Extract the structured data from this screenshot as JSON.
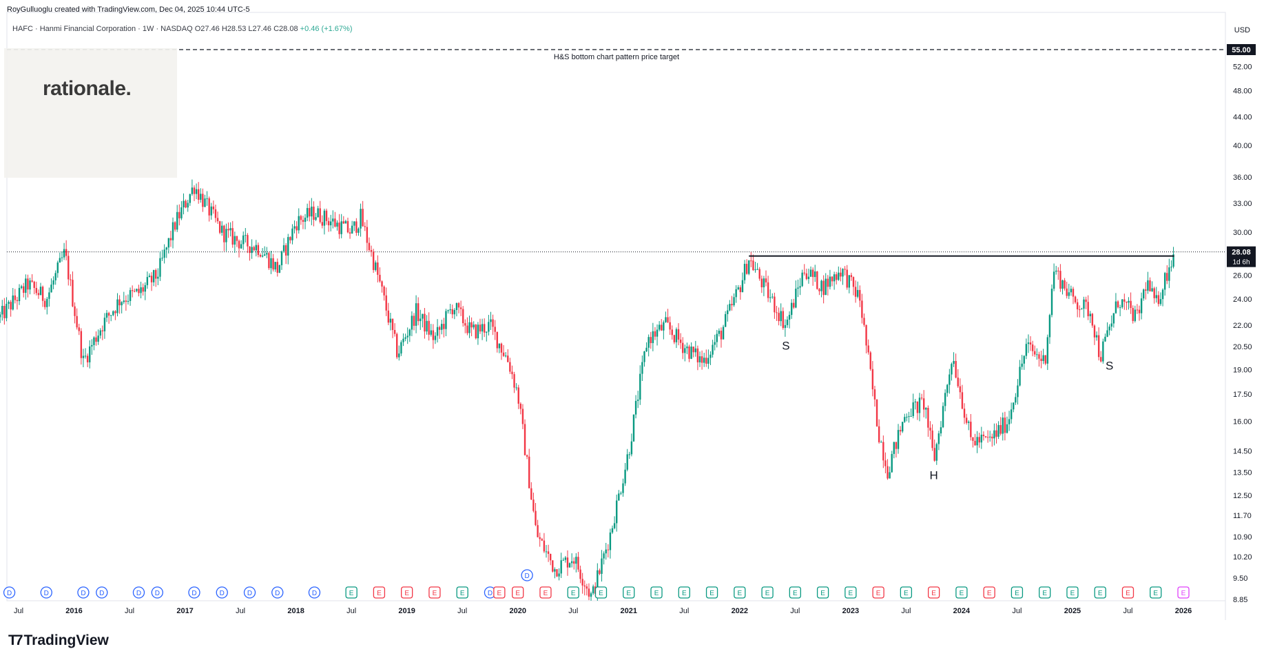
{
  "header": {
    "credit": "RoyGulluoglu created with TradingView.com, Dec 04, 2025 10:44 UTC-5"
  },
  "legend": {
    "symbol_line": "HAFC · Hanmi Financial Corporation · 1W · NASDAQ",
    "open": "O27.46",
    "high": "H28.53",
    "low": "L27.46",
    "close": "C28.08",
    "change": "+0.46 (+1.67%)"
  },
  "logo": {
    "text": "rationale."
  },
  "brand": {
    "text": "TradingView",
    "icon": "tradingview-logo-icon"
  },
  "colors": {
    "up": "#089981",
    "down": "#f23645",
    "dividend": "#2962ff",
    "earn_pos": "#089981",
    "earn_neg": "#f23645",
    "earn_future": "#e040fb"
  },
  "chart_data": {
    "type": "candlestick",
    "currency": "USD",
    "y_scale": "log",
    "y_ticks": [
      "8.85",
      "9.50",
      "10.20",
      "10.90",
      "11.70",
      "12.50",
      "13.50",
      "14.50",
      "16.00",
      "17.50",
      "19.00",
      "20.50",
      "22.00",
      "24.00",
      "26.00",
      "30.00",
      "33.00",
      "36.00",
      "40.00",
      "44.00",
      "48.00",
      "52.00"
    ],
    "x_ticks": [
      "Jul",
      "2016",
      "Jul",
      "2017",
      "Jul",
      "2018",
      "Jul",
      "2019",
      "Jul",
      "2020",
      "Jul",
      "2021",
      "Jul",
      "2022",
      "Jul",
      "2023",
      "Jul",
      "2024",
      "Jul",
      "2025",
      "Jul",
      "2026"
    ],
    "target_price": {
      "value": 55.0,
      "label": "55.00",
      "annotation": "H&S bottom chart pattern price target"
    },
    "neckline": {
      "value": 27.7,
      "from": "2022-02",
      "to": "2025-12"
    },
    "last_price": {
      "value": 28.08,
      "label": "28.08",
      "countdown": "1d 6h"
    },
    "pattern_labels": [
      {
        "text": "S",
        "date": "2022-06",
        "price": 20.3
      },
      {
        "text": "H",
        "date": "2023-10",
        "price": 13.2
      },
      {
        "text": "S",
        "date": "2025-05",
        "price": 19.0
      }
    ],
    "price_path": [
      [
        "2015-05",
        22.6
      ],
      [
        "2015-08",
        25.2
      ],
      [
        "2015-10",
        24.0
      ],
      [
        "2015-12",
        28.0
      ],
      [
        "2016-02",
        19.5
      ],
      [
        "2016-04",
        22.0
      ],
      [
        "2016-06",
        24.0
      ],
      [
        "2016-08",
        24.5
      ],
      [
        "2016-10",
        26.0
      ],
      [
        "2016-12",
        31.0
      ],
      [
        "2017-02",
        35.0
      ],
      [
        "2017-05",
        30.0
      ],
      [
        "2017-07",
        29.0
      ],
      [
        "2017-09",
        28.5
      ],
      [
        "2017-11",
        26.5
      ],
      [
        "2018-01",
        31.0
      ],
      [
        "2018-03",
        32.0
      ],
      [
        "2018-05",
        31.0
      ],
      [
        "2018-07",
        30.0
      ],
      [
        "2018-08",
        31.5
      ],
      [
        "2018-10",
        25.5
      ],
      [
        "2018-12",
        20.0
      ],
      [
        "2019-02",
        23.0
      ],
      [
        "2019-04",
        21.0
      ],
      [
        "2019-06",
        23.5
      ],
      [
        "2019-08",
        21.5
      ],
      [
        "2019-10",
        22.0
      ],
      [
        "2019-12",
        19.5
      ],
      [
        "2020-01",
        17.5
      ],
      [
        "2020-03",
        11.0
      ],
      [
        "2020-05",
        9.8
      ],
      [
        "2020-07",
        10.2
      ],
      [
        "2020-09",
        8.9
      ],
      [
        "2020-11",
        11.0
      ],
      [
        "2021-01",
        14.5
      ],
      [
        "2021-03",
        21.0
      ],
      [
        "2021-05",
        22.0
      ],
      [
        "2021-07",
        20.5
      ],
      [
        "2021-09",
        19.5
      ],
      [
        "2021-11",
        21.5
      ],
      [
        "2022-01",
        25.0
      ],
      [
        "2022-02",
        27.5
      ],
      [
        "2022-04",
        24.5
      ],
      [
        "2022-06",
        22.0
      ],
      [
        "2022-08",
        26.5
      ],
      [
        "2022-10",
        25.0
      ],
      [
        "2022-12",
        26.5
      ],
      [
        "2023-02",
        24.0
      ],
      [
        "2023-04",
        15.5
      ],
      [
        "2023-05",
        13.6
      ],
      [
        "2023-07",
        16.5
      ],
      [
        "2023-09",
        17.0
      ],
      [
        "2023-10",
        14.0
      ],
      [
        "2023-12",
        20.0
      ],
      [
        "2024-02",
        15.0
      ],
      [
        "2024-04",
        15.0
      ],
      [
        "2024-06",
        16.0
      ],
      [
        "2024-08",
        20.5
      ],
      [
        "2024-10",
        19.5
      ],
      [
        "2024-11",
        26.5
      ],
      [
        "2025-01",
        24.0
      ],
      [
        "2025-03",
        23.0
      ],
      [
        "2025-04",
        19.8
      ],
      [
        "2025-06",
        24.0
      ],
      [
        "2025-08",
        22.5
      ],
      [
        "2025-09",
        25.5
      ],
      [
        "2025-10",
        23.5
      ],
      [
        "2025-12",
        28.08
      ]
    ],
    "events": [
      {
        "type": "D",
        "date": "2015-06"
      },
      {
        "type": "D",
        "date": "2015-10"
      },
      {
        "type": "D",
        "date": "2016-02"
      },
      {
        "type": "D",
        "date": "2016-04"
      },
      {
        "type": "D",
        "date": "2016-08"
      },
      {
        "type": "D",
        "date": "2016-10"
      },
      {
        "type": "D",
        "date": "2017-02"
      },
      {
        "type": "D",
        "date": "2017-05"
      },
      {
        "type": "D",
        "date": "2017-08"
      },
      {
        "type": "D",
        "date": "2017-11"
      },
      {
        "type": "D",
        "date": "2018-03"
      },
      {
        "type": "E+",
        "date": "2018-07"
      },
      {
        "type": "E-",
        "date": "2018-10"
      },
      {
        "type": "E-",
        "date": "2019-01"
      },
      {
        "type": "E-",
        "date": "2019-04"
      },
      {
        "type": "E+",
        "date": "2019-07"
      },
      {
        "type": "D",
        "date": "2019-10"
      },
      {
        "type": "E-",
        "date": "2019-11"
      },
      {
        "type": "E-",
        "date": "2020-01"
      },
      {
        "type": "D",
        "date": "2020-02",
        "row": 2
      },
      {
        "type": "E-",
        "date": "2020-04"
      },
      {
        "type": "E+",
        "date": "2020-07"
      },
      {
        "type": "E+",
        "date": "2020-10"
      },
      {
        "type": "E+",
        "date": "2021-01"
      },
      {
        "type": "E+",
        "date": "2021-04"
      },
      {
        "type": "E+",
        "date": "2021-07"
      },
      {
        "type": "E+",
        "date": "2021-10"
      },
      {
        "type": "E+",
        "date": "2022-01"
      },
      {
        "type": "E+",
        "date": "2022-04"
      },
      {
        "type": "E+",
        "date": "2022-07"
      },
      {
        "type": "E+",
        "date": "2022-10"
      },
      {
        "type": "E+",
        "date": "2023-01"
      },
      {
        "type": "E-",
        "date": "2023-04"
      },
      {
        "type": "E+",
        "date": "2023-07"
      },
      {
        "type": "E-",
        "date": "2023-10"
      },
      {
        "type": "E+",
        "date": "2024-01"
      },
      {
        "type": "E-",
        "date": "2024-04"
      },
      {
        "type": "E+",
        "date": "2024-07"
      },
      {
        "type": "E+",
        "date": "2024-10"
      },
      {
        "type": "E+",
        "date": "2025-01"
      },
      {
        "type": "E+",
        "date": "2025-04"
      },
      {
        "type": "E-",
        "date": "2025-07"
      },
      {
        "type": "E+",
        "date": "2025-10"
      },
      {
        "type": "E?",
        "date": "2026-01"
      }
    ]
  }
}
